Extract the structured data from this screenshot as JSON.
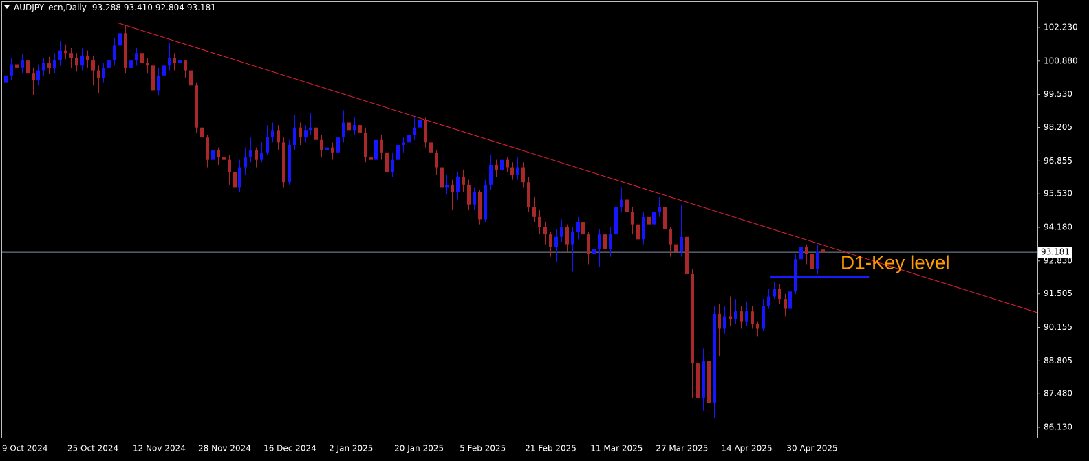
{
  "chart_data": {
    "type": "candlestick",
    "header": {
      "symbol": "AUDJPY_ecn,Daily",
      "ohlc": [
        93.288,
        {
          "value": 93.41,
          "label": "93.410"
        },
        92.804,
        93.181
      ]
    },
    "categories": [
      "9 Oct 2024",
      null,
      null,
      null,
      null,
      null,
      null,
      null,
      null,
      null,
      null,
      null,
      "25 Oct 2024",
      null,
      null,
      null,
      null,
      null,
      null,
      null,
      null,
      null,
      null,
      null,
      "12 Nov 2024",
      null,
      null,
      null,
      null,
      null,
      null,
      null,
      null,
      null,
      null,
      null,
      "28 Nov 2024",
      null,
      null,
      null,
      null,
      null,
      null,
      null,
      null,
      null,
      null,
      null,
      "16 Dec 2024",
      null,
      null,
      null,
      null,
      null,
      null,
      null,
      null,
      null,
      null,
      null,
      "2 Jan 2025",
      null,
      null,
      null,
      null,
      null,
      null,
      null,
      null,
      null,
      null,
      null,
      "20 Jan 2025",
      null,
      null,
      null,
      null,
      null,
      null,
      null,
      null,
      null,
      null,
      null,
      "5 Feb 2025",
      null,
      null,
      null,
      null,
      null,
      null,
      null,
      null,
      null,
      null,
      null,
      "21 Feb 2025",
      null,
      null,
      null,
      null,
      null,
      null,
      null,
      null,
      null,
      null,
      null,
      "11 Mar 2025",
      null,
      null,
      null,
      null,
      null,
      null,
      null,
      null,
      null,
      null,
      null,
      "27 Mar 2025",
      null,
      null,
      null,
      null,
      null,
      null,
      null,
      null,
      null,
      null,
      null,
      "14 Apr 2025",
      null,
      null,
      null,
      null,
      null,
      null,
      null,
      null,
      null,
      null,
      null,
      "30 Apr 2025",
      null,
      null,
      null,
      null,
      null,
      null
    ],
    "open": [
      100.0,
      100.3,
      100.75,
      100.6,
      100.9,
      100.4,
      100.1,
      100.5,
      100.8,
      100.6,
      100.9,
      101.3,
      101.2,
      101.0,
      100.7,
      101.1,
      100.9,
      100.5,
      100.2,
      100.6,
      100.9,
      101.5,
      102.0,
      100.6,
      100.9,
      101.2,
      100.8,
      100.7,
      99.7,
      100.3,
      100.7,
      101.0,
      100.8,
      100.9,
      100.5,
      99.9,
      98.2,
      97.8,
      96.9,
      97.3,
      97.0,
      96.9,
      96.4,
      95.8,
      96.6,
      97.0,
      97.3,
      96.9,
      97.2,
      97.8,
      98.1,
      97.6,
      96.0,
      97.5,
      98.2,
      97.8,
      98.1,
      98.2,
      97.7,
      97.3,
      97.4,
      97.2,
      97.8,
      98.4,
      98.1,
      98.3,
      98.0,
      97.0,
      96.9,
      97.7,
      97.2,
      96.4,
      96.9,
      97.5,
      97.6,
      97.9,
      98.2,
      98.5,
      97.6,
      97.2,
      96.6,
      95.8,
      95.9,
      95.6,
      96.2,
      95.9,
      95.1,
      95.6,
      94.5,
      95.9,
      96.7,
      96.5,
      96.9,
      96.6,
      96.3,
      96.6,
      96.0,
      95.0,
      94.6,
      94.2,
      93.9,
      93.4,
      93.8,
      94.2,
      93.5,
      94.0,
      94.4,
      93.9,
      93.1,
      93.3,
      93.9,
      93.3,
      93.9,
      95.0,
      95.3,
      94.8,
      94.3,
      93.7,
      94.6,
      94.3,
      94.8,
      95.0,
      94.1,
      93.5,
      93.2,
      93.8,
      92.3,
      88.7,
      87.3,
      88.8,
      87.1,
      90.7,
      90.1,
      90.6,
      90.5,
      90.8,
      90.4,
      90.8,
      90.3,
      90.1,
      91.0,
      91.4,
      91.7,
      91.3,
      90.9,
      91.6,
      92.9,
      93.4,
      93.1,
      92.5,
      93.288
    ],
    "high": [
      100.7,
      101.0,
      100.95,
      101.15,
      101.1,
      100.6,
      100.75,
      101.0,
      101.05,
      101.2,
      101.7,
      101.55,
      101.4,
      101.2,
      101.4,
      101.3,
      101.1,
      100.7,
      100.8,
      101.1,
      101.8,
      102.42,
      102.3,
      101.4,
      101.4,
      101.3,
      101.0,
      100.9,
      100.6,
      101.3,
      101.6,
      101.2,
      101.1,
      100.9,
      100.7,
      100.0,
      98.6,
      97.9,
      97.6,
      97.4,
      97.3,
      97.1,
      96.6,
      96.9,
      97.4,
      97.8,
      97.4,
      97.6,
      98.3,
      98.4,
      98.3,
      97.8,
      97.7,
      98.7,
      98.4,
      98.3,
      98.8,
      98.4,
      97.9,
      97.7,
      97.6,
      98.0,
      98.9,
      99.1,
      98.6,
      98.5,
      98.2,
      97.4,
      98.0,
      97.9,
      97.4,
      97.2,
      97.7,
      97.8,
      98.3,
      98.6,
      98.8,
      98.6,
      97.8,
      97.3,
      96.8,
      96.3,
      96.1,
      96.4,
      96.5,
      96.1,
      95.8,
      95.7,
      96.1,
      97.1,
      96.9,
      97.1,
      97.0,
      96.8,
      97.0,
      96.8,
      96.2,
      95.4,
      94.9,
      94.4,
      94.0,
      94.1,
      94.5,
      94.3,
      94.2,
      94.6,
      94.5,
      94.0,
      93.6,
      94.1,
      94.0,
      94.2,
      95.3,
      95.8,
      95.5,
      95.0,
      94.5,
      94.8,
      94.9,
      95.2,
      95.4,
      95.2,
      94.2,
      93.7,
      95.1,
      93.9,
      92.5,
      89.2,
      89.3,
      89.0,
      91.0,
      91.1,
      91.0,
      91.4,
      91.3,
      91.0,
      91.2,
      91.0,
      90.4,
      91.3,
      91.7,
      92.0,
      91.9,
      91.5,
      92.3,
      93.1,
      93.6,
      93.5,
      93.2,
      93.5,
      93.41
    ],
    "low": [
      99.8,
      100.1,
      100.35,
      100.4,
      100.2,
      99.5,
      99.9,
      100.3,
      100.35,
      100.4,
      100.7,
      100.95,
      100.6,
      100.45,
      100.5,
      100.6,
      99.9,
      99.6,
      100.0,
      100.4,
      100.7,
      101.3,
      100.4,
      100.5,
      100.7,
      100.5,
      100.4,
      99.4,
      99.5,
      100.1,
      100.5,
      100.5,
      100.5,
      100.2,
      99.6,
      98.0,
      97.4,
      96.6,
      96.7,
      96.7,
      96.4,
      95.9,
      95.5,
      95.6,
      96.3,
      96.8,
      96.6,
      96.8,
      97.1,
      97.6,
      97.3,
      95.8,
      95.9,
      97.3,
      97.5,
      97.6,
      97.9,
      97.4,
      97.0,
      97.1,
      96.9,
      97.1,
      97.6,
      97.9,
      97.9,
      97.7,
      96.8,
      96.4,
      96.7,
      96.9,
      96.2,
      96.2,
      96.8,
      97.2,
      97.4,
      97.7,
      98.0,
      97.4,
      96.9,
      96.3,
      95.6,
      95.5,
      94.9,
      95.3,
      95.6,
      94.9,
      94.9,
      94.3,
      94.4,
      95.7,
      96.2,
      96.3,
      96.4,
      96.1,
      96.1,
      95.8,
      94.8,
      94.4,
      93.9,
      93.5,
      93.0,
      92.8,
      93.6,
      93.2,
      92.4,
      93.7,
      93.6,
      92.7,
      92.9,
      92.6,
      92.8,
      93.0,
      93.7,
      94.8,
      94.5,
      93.9,
      92.9,
      93.5,
      94.1,
      94.2,
      94.6,
      93.9,
      93.0,
      92.9,
      93.0,
      92.1,
      87.3,
      86.6,
      86.8,
      86.3,
      86.5,
      89.0,
      89.9,
      90.2,
      90.3,
      90.1,
      90.2,
      90.1,
      89.8,
      90.0,
      90.9,
      91.3,
      91.1,
      90.6,
      90.8,
      91.5,
      92.8,
      92.7,
      92.2,
      92.3,
      92.804
    ],
    "close": [
      100.3,
      100.75,
      100.6,
      100.9,
      100.4,
      100.1,
      100.5,
      100.8,
      100.6,
      100.9,
      101.3,
      101.2,
      101.0,
      100.7,
      101.1,
      100.9,
      100.5,
      100.2,
      100.6,
      100.9,
      101.5,
      102.0,
      100.6,
      100.9,
      101.2,
      100.8,
      100.7,
      99.7,
      100.3,
      100.7,
      101.0,
      100.8,
      100.9,
      100.5,
      99.9,
      98.2,
      97.8,
      96.9,
      97.3,
      97.0,
      96.9,
      96.4,
      95.8,
      96.6,
      97.0,
      97.3,
      96.9,
      97.2,
      97.8,
      98.1,
      97.6,
      96.0,
      97.5,
      98.2,
      97.8,
      98.1,
      98.2,
      97.7,
      97.3,
      97.4,
      97.2,
      97.8,
      98.4,
      98.1,
      98.3,
      98.0,
      97.0,
      96.9,
      97.7,
      97.2,
      96.4,
      96.9,
      97.5,
      97.6,
      97.9,
      98.2,
      98.5,
      97.6,
      97.2,
      96.6,
      95.8,
      95.9,
      95.6,
      96.2,
      95.9,
      95.1,
      95.6,
      94.5,
      95.9,
      96.7,
      96.5,
      96.9,
      96.6,
      96.3,
      96.6,
      96.0,
      95.0,
      94.6,
      94.2,
      93.9,
      93.4,
      93.8,
      94.2,
      93.5,
      94.0,
      94.4,
      93.9,
      93.1,
      93.3,
      93.9,
      93.3,
      93.9,
      95.0,
      95.3,
      94.8,
      94.3,
      93.7,
      94.6,
      94.3,
      94.8,
      95.0,
      94.1,
      93.5,
      93.2,
      93.8,
      92.3,
      88.7,
      87.3,
      88.8,
      87.1,
      90.7,
      90.1,
      90.6,
      90.5,
      90.8,
      90.4,
      90.8,
      90.3,
      90.1,
      91.0,
      91.4,
      91.7,
      91.3,
      90.9,
      91.6,
      92.9,
      93.4,
      93.1,
      92.5,
      93.2,
      93.181
    ],
    "up_color": "#1616ff",
    "down_color": "#a8282c",
    "xlim": [
      -1,
      189.4
    ],
    "ylim": [
      85.715,
      103.337
    ],
    "yticks": [
      {
        "value": 102.23,
        "label": "102.230"
      },
      {
        "value": 100.88,
        "label": "100.880"
      },
      {
        "value": 99.53,
        "label": "99.530"
      },
      98.205,
      96.855,
      {
        "value": 95.53,
        "label": "95.530"
      },
      {
        "value": 94.18,
        "label": "94.180"
      },
      {
        "value": 92.83,
        "label": "92.830"
      },
      91.505,
      90.155,
      88.805,
      {
        "value": 87.48,
        "label": "87.480"
      },
      {
        "value": 86.13,
        "label": "86.130"
      }
    ],
    "grid": false,
    "current_price": 93.181,
    "trendline": {
      "x": [
        20.5,
        189.4
      ],
      "y": [
        102.42,
        90.75
      ],
      "color": "#e8203a"
    },
    "key_level": {
      "label": "D1-Key level",
      "x": [
        140.4,
        158.5
      ],
      "y": 92.19,
      "color": "#1a1aff"
    }
  }
}
